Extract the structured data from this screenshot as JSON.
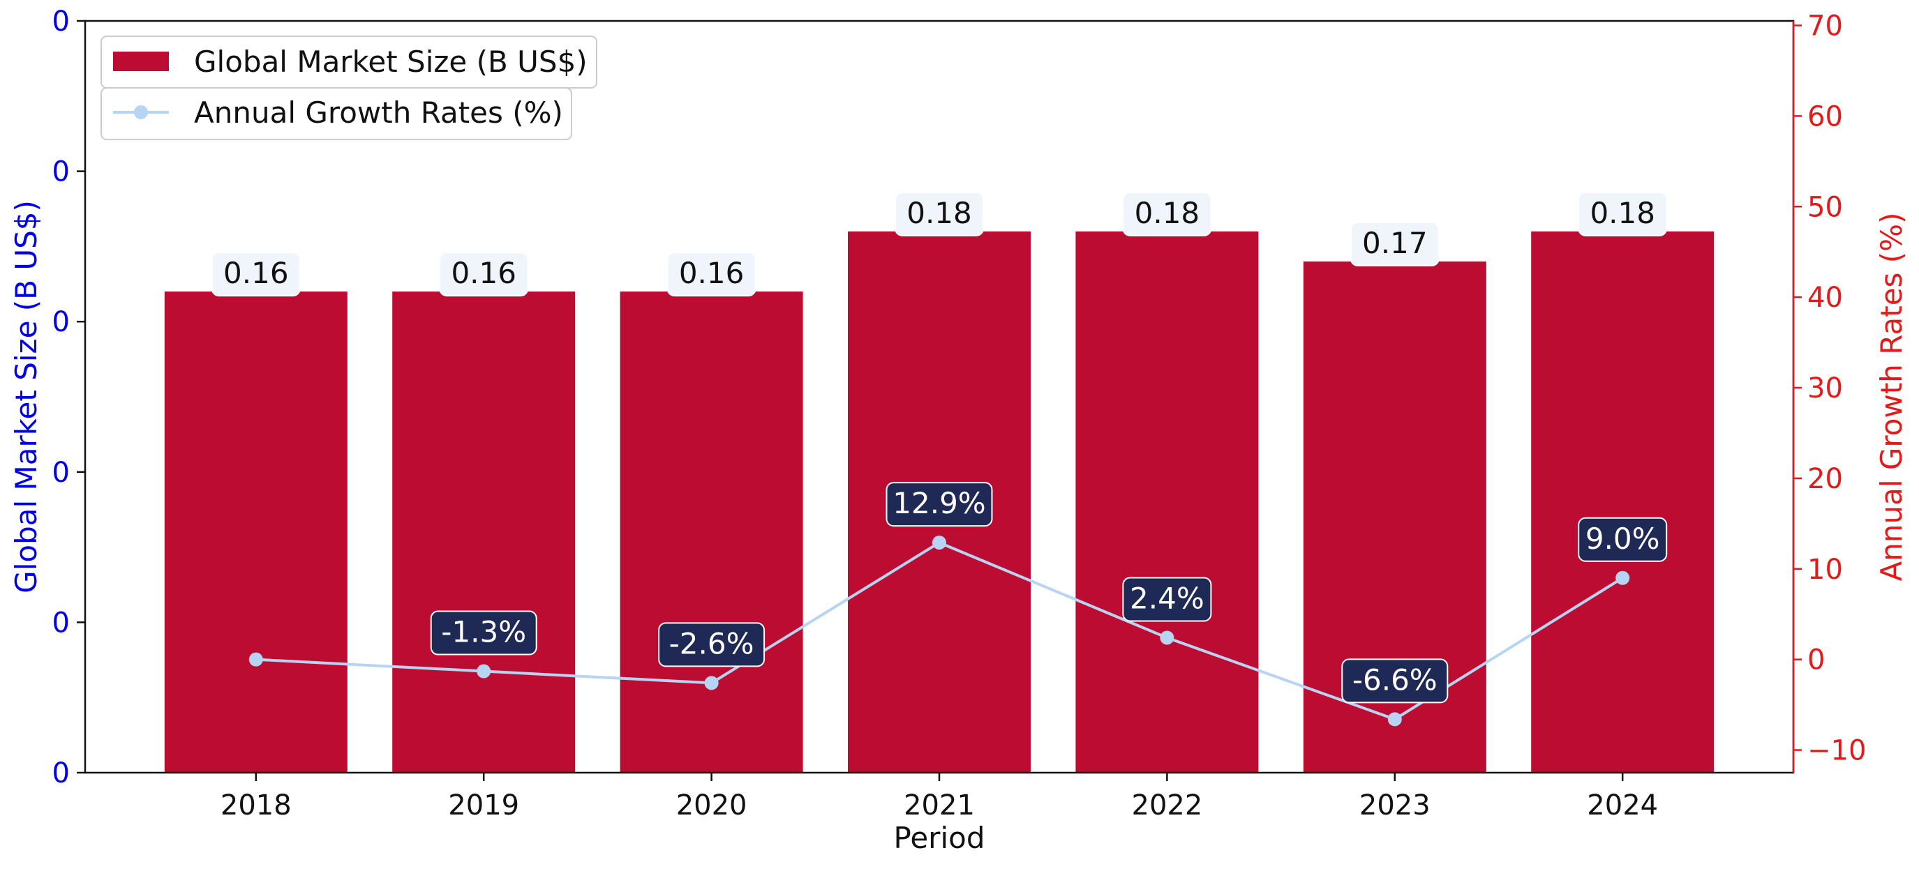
{
  "chart_data": {
    "type": "bar",
    "categories": [
      "2018",
      "2019",
      "2020",
      "2021",
      "2022",
      "2023",
      "2024"
    ],
    "series": [
      {
        "name": "Global Market Size (B US$)",
        "type": "bar",
        "axis": "left",
        "values": [
          0.16,
          0.16,
          0.16,
          0.18,
          0.18,
          0.17,
          0.18
        ],
        "labels": [
          "0.16",
          "0.16",
          "0.16",
          "0.18",
          "0.18",
          "0.17",
          "0.18"
        ]
      },
      {
        "name": "Annual Growth Rates (%)",
        "type": "line",
        "axis": "right",
        "values": [
          0.0,
          -1.3,
          -2.6,
          12.9,
          2.4,
          -6.6,
          9.0
        ],
        "labels": [
          "",
          "-1.3%",
          "-2.6%",
          "12.9%",
          "2.4%",
          "-6.6%",
          "9.0%"
        ]
      }
    ],
    "xlabel": "Period",
    "ylabel_left": "Global Market Size (B US$)",
    "ylabel_right": "Annual Growth Rates (%)",
    "ylim_left": [
      0,
      0.25
    ],
    "yticks_left": [
      0,
      0.05,
      0.1,
      0.15,
      0.2,
      0.25
    ],
    "ytick_labels_left": [
      "0",
      "0",
      "0",
      "0",
      "0",
      "0"
    ],
    "ylim_right": [
      -12.5,
      70.5
    ],
    "yticks_right": [
      -10,
      0,
      10,
      20,
      30,
      40,
      50,
      60,
      70
    ],
    "ytick_labels_right": [
      "−10",
      "0",
      "10",
      "20",
      "30",
      "40",
      "50",
      "60",
      "70"
    ],
    "grid": false,
    "legend_position": "top-left"
  },
  "colors": {
    "bar": "#bd0c31",
    "line": "#b7d5f3",
    "growth_label_bg": "#1e2a55",
    "bar_label_bg": "#eff5fb",
    "left_axis": "#0000ee",
    "right_axis": "#e41a1a"
  }
}
